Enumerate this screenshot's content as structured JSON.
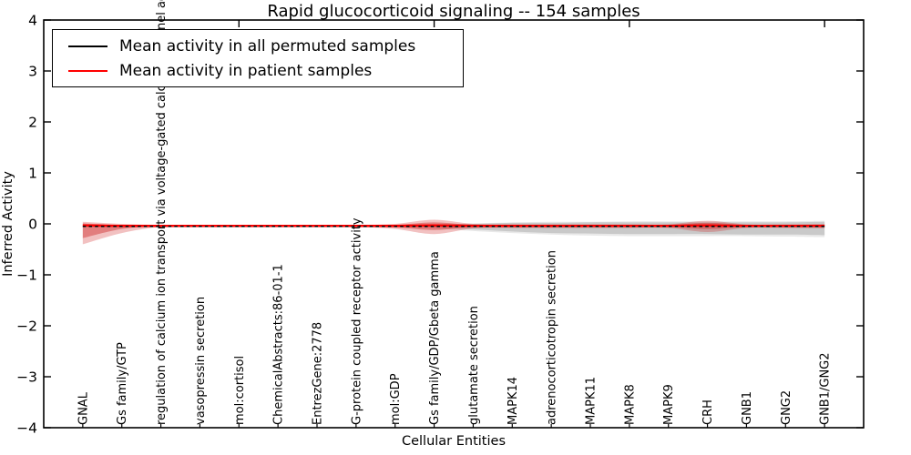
{
  "chart_data": {
    "type": "line",
    "title": "Rapid glucocorticoid signaling -- 154 samples",
    "xlabel": "Cellular Entities",
    "ylabel": "Inferred Activity",
    "ylim": [
      -4,
      4
    ],
    "yticks": [
      4,
      3,
      2,
      1,
      0,
      -1,
      -2,
      -3,
      -4
    ],
    "grid": false,
    "legend_position": "upper-left",
    "top_ticks_at_categories": [
      5,
      10,
      15,
      20
    ],
    "categories": [
      "GNAL",
      "Gs family/GTP",
      "regulation of calcium ion transport via voltage-gated calcium channel activity",
      "vasopressin secretion",
      "mol:cortisol",
      "ChemicalAbstracts:86-01-1",
      "EntrezGene:2778",
      "G-protein coupled receptor activity",
      "mol:GDP",
      "Gs family/GDP/Gbeta gamma",
      "glutamate secretion",
      "MAPK14",
      "adrenocorticotropin secretion",
      "MAPK11",
      "MAPK8",
      "MAPK9",
      "CRH",
      "GNB1",
      "GNG2",
      "GNB1/GNG2"
    ],
    "series": [
      {
        "name": "Mean activity in all permuted samples",
        "color": "#000000",
        "style": "dashed",
        "values": [
          -0.05,
          -0.05,
          -0.05,
          -0.05,
          -0.05,
          -0.05,
          -0.05,
          -0.05,
          -0.05,
          -0.05,
          -0.05,
          -0.05,
          -0.05,
          -0.05,
          -0.05,
          -0.05,
          -0.05,
          -0.05,
          -0.05,
          -0.05
        ]
      },
      {
        "name": "Mean activity in patient samples",
        "color": "#ff0000",
        "style": "solid",
        "values": [
          -0.03,
          -0.04,
          -0.04,
          -0.04,
          -0.04,
          -0.04,
          -0.04,
          -0.04,
          -0.04,
          -0.03,
          -0.04,
          -0.04,
          -0.04,
          -0.04,
          -0.04,
          -0.04,
          -0.03,
          -0.04,
          -0.04,
          -0.04
        ]
      }
    ],
    "bands": [
      {
        "name": "permuted-range-outer",
        "color": "rgba(120,120,120,0.16)",
        "top": [
          -0.04,
          -0.04,
          -0.04,
          -0.04,
          -0.04,
          -0.04,
          -0.04,
          -0.04,
          -0.04,
          -0.01,
          0.01,
          0.03,
          0.04,
          0.04,
          0.05,
          0.05,
          0.05,
          0.05,
          0.05,
          0.06
        ],
        "bottom": [
          -0.06,
          -0.06,
          -0.06,
          -0.06,
          -0.06,
          -0.06,
          -0.06,
          -0.06,
          -0.06,
          -0.09,
          -0.14,
          -0.18,
          -0.21,
          -0.23,
          -0.24,
          -0.24,
          -0.24,
          -0.24,
          -0.25,
          -0.26
        ]
      },
      {
        "name": "permuted-range-inner",
        "color": "rgba(120,120,120,0.28)",
        "top": [
          -0.05,
          -0.05,
          -0.05,
          -0.05,
          -0.05,
          -0.05,
          -0.05,
          -0.05,
          -0.05,
          -0.02,
          0.0,
          0.02,
          0.02,
          0.03,
          0.03,
          0.03,
          0.03,
          0.03,
          0.03,
          0.04
        ],
        "bottom": [
          -0.06,
          -0.06,
          -0.06,
          -0.06,
          -0.06,
          -0.06,
          -0.06,
          -0.06,
          -0.06,
          -0.07,
          -0.11,
          -0.15,
          -0.18,
          -0.19,
          -0.2,
          -0.2,
          -0.2,
          -0.21,
          -0.21,
          -0.22
        ]
      },
      {
        "name": "patient-range-outer",
        "color": "rgba(208,32,32,0.28)",
        "top": [
          0.04,
          0.0,
          -0.02,
          -0.02,
          -0.02,
          -0.02,
          -0.02,
          -0.02,
          0.0,
          0.08,
          0.0,
          -0.01,
          -0.01,
          -0.01,
          -0.01,
          -0.01,
          0.06,
          -0.01,
          -0.01,
          0.0
        ],
        "bottom": [
          -0.4,
          -0.18,
          -0.06,
          -0.06,
          -0.06,
          -0.06,
          -0.06,
          -0.06,
          -0.1,
          -0.2,
          -0.09,
          -0.08,
          -0.08,
          -0.08,
          -0.08,
          -0.08,
          -0.16,
          -0.08,
          -0.08,
          -0.09
        ]
      },
      {
        "name": "patient-range-inner",
        "color": "rgba(204,34,34,0.42)",
        "top": [
          0.01,
          -0.02,
          -0.03,
          -0.03,
          -0.03,
          -0.03,
          -0.03,
          -0.03,
          -0.02,
          0.03,
          -0.02,
          -0.02,
          -0.02,
          -0.02,
          -0.02,
          -0.02,
          0.02,
          -0.02,
          -0.02,
          -0.02
        ],
        "bottom": [
          -0.28,
          -0.1,
          -0.05,
          -0.05,
          -0.05,
          -0.05,
          -0.05,
          -0.05,
          -0.07,
          -0.12,
          -0.06,
          -0.06,
          -0.06,
          -0.06,
          -0.06,
          -0.06,
          -0.1,
          -0.06,
          -0.06,
          -0.06
        ]
      }
    ]
  }
}
